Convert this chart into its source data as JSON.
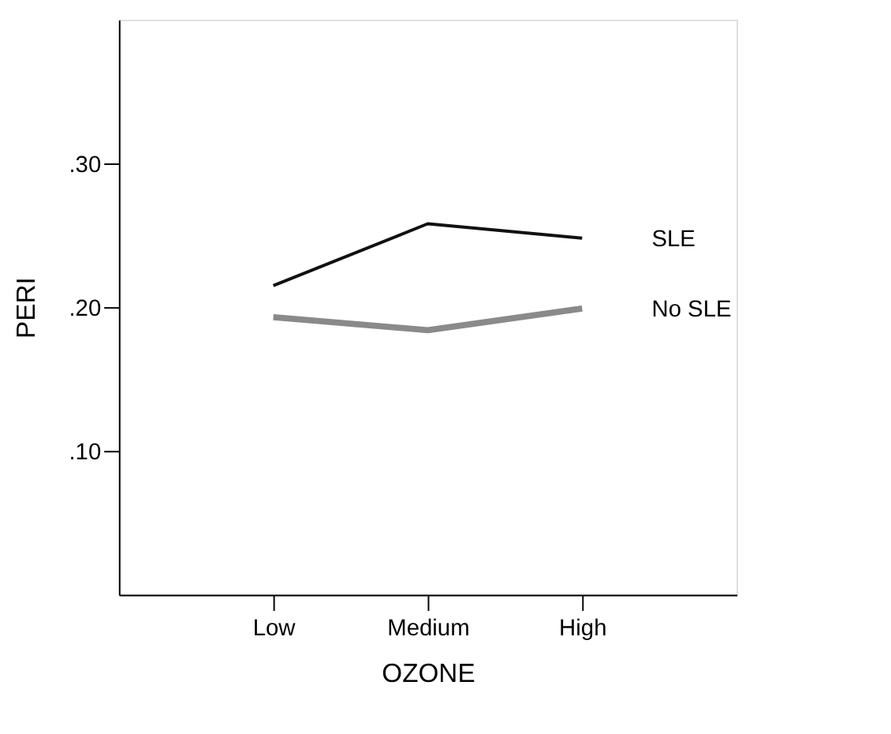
{
  "chart_data": {
    "type": "line",
    "xlabel": "OZONE",
    "ylabel": "PERI",
    "categories": [
      "Low",
      "Medium",
      "High"
    ],
    "series": [
      {
        "name": "SLE",
        "color": "#111111",
        "values": [
          0.215,
          0.258,
          0.248
        ]
      },
      {
        "name": "No SLE",
        "color": "#8a8a8a",
        "values": [
          0.193,
          0.184,
          0.199
        ]
      }
    ],
    "ylim": [
      0,
      0.4
    ],
    "yticks": [
      {
        "value": 0.1,
        "label": ".10"
      },
      {
        "value": 0.2,
        "label": ".20"
      },
      {
        "value": 0.3,
        "label": ".30"
      }
    ],
    "grid": false,
    "legend": false,
    "marker": "none",
    "line_style": "solid"
  }
}
